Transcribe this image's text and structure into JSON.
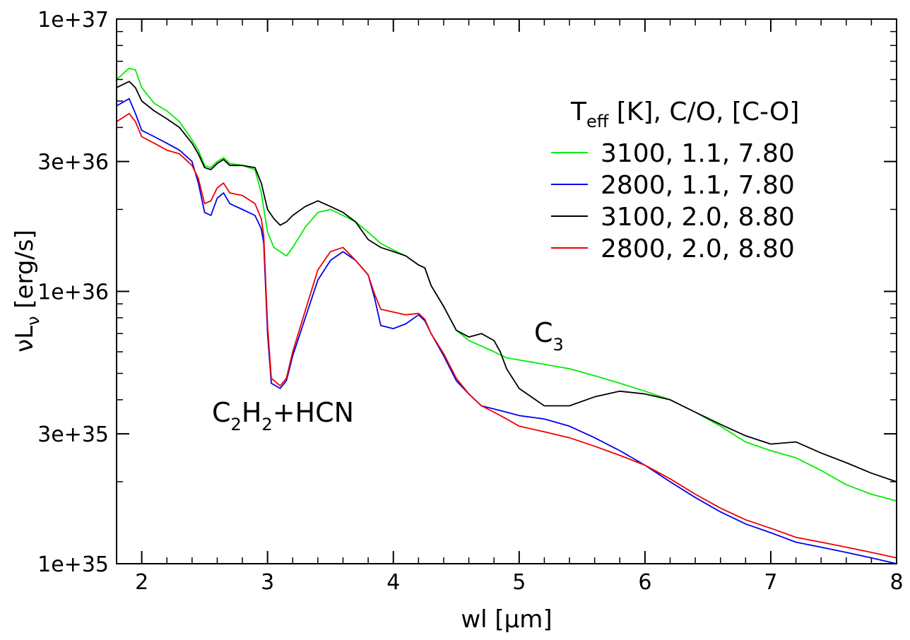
{
  "chart_data": {
    "type": "line",
    "xlabel": "wl [µm]",
    "ylabel": {
      "main": "νL",
      "sub": "ν",
      "unit": " [erg/s]"
    },
    "xlim": [
      1.8,
      8.0
    ],
    "ylim": [
      1e+35,
      1e+37
    ],
    "yscale": "log",
    "x_ticks": [
      2,
      3,
      4,
      5,
      6,
      7,
      8
    ],
    "x_tick_labels": [
      "2",
      "3",
      "4",
      "5",
      "6",
      "7",
      "8"
    ],
    "y_ticks": [
      1e+35,
      3e+35,
      1e+36,
      3e+36,
      1e+37
    ],
    "y_tick_labels": [
      "1e+35",
      "3e+35",
      "1e+36",
      "3e+36",
      "1e+37"
    ],
    "grid": false,
    "legend": {
      "placement": "top-right",
      "title": {
        "main": "T",
        "sub": "eff",
        "rest": " [K], C/O, [C-O]"
      }
    },
    "annotations": [
      {
        "id": "c2h2",
        "parts": [
          "C",
          "2",
          "H",
          "2",
          "+HCN"
        ],
        "x": 3.1,
        "y": 3.8e+35
      },
      {
        "id": "c3",
        "parts": [
          "C",
          "3"
        ],
        "x": 5.4,
        "y": 6.2e+35
      }
    ],
    "series": [
      {
        "name": "3100, 1.1, 7.80",
        "color": "#00ee00",
        "x": [
          1.8,
          1.9,
          1.95,
          2.0,
          2.1,
          2.2,
          2.3,
          2.4,
          2.45,
          2.5,
          2.55,
          2.6,
          2.65,
          2.7,
          2.8,
          2.9,
          2.95,
          3.0,
          3.05,
          3.1,
          3.15,
          3.2,
          3.3,
          3.4,
          3.5,
          3.6,
          3.7,
          3.8,
          3.9,
          4.0,
          4.1,
          4.2,
          4.25,
          4.3,
          4.4,
          4.5,
          4.6,
          4.7,
          4.8,
          4.9,
          5.0,
          5.2,
          5.4,
          5.6,
          5.8,
          6.0,
          6.2,
          6.4,
          6.6,
          6.8,
          7.0,
          7.2,
          7.4,
          7.6,
          7.8,
          8.0
        ],
        "y": [
          6e+36,
          6.6e+36,
          6.5e+36,
          5.6e+36,
          4.9e+36,
          4.6e+36,
          4.2e+36,
          3.6e+36,
          3.3e+36,
          2.9e+36,
          2.85e+36,
          3e+36,
          3.1e+36,
          2.95e+36,
          2.9e+36,
          2.8e+36,
          2.3e+36,
          1.65e+36,
          1.45e+36,
          1.4e+36,
          1.35e+36,
          1.45e+36,
          1.72e+36,
          1.95e+36,
          2e+36,
          1.9e+36,
          1.8e+36,
          1.65e+36,
          1.5e+36,
          1.42e+36,
          1.35e+36,
          1.25e+36,
          1.22e+36,
          1.05e+36,
          8.8e+35,
          7.2e+35,
          6.6e+35,
          6.3e+35,
          6e+35,
          5.7e+35,
          5.6e+35,
          5.4e+35,
          5.2e+35,
          4.9e+35,
          4.6e+35,
          4.3e+35,
          4e+35,
          3.6e+35,
          3.2e+35,
          2.8e+35,
          2.6e+35,
          2.45e+35,
          2.2e+35,
          1.95e+35,
          1.8e+35,
          1.7e+35
        ]
      },
      {
        "name": "2800, 1.1, 7.80",
        "color": "#0000ee",
        "x": [
          1.8,
          1.9,
          1.95,
          2.0,
          2.1,
          2.2,
          2.3,
          2.4,
          2.45,
          2.5,
          2.55,
          2.6,
          2.65,
          2.7,
          2.8,
          2.9,
          2.95,
          2.97,
          3.0,
          3.03,
          3.1,
          3.15,
          3.2,
          3.3,
          3.4,
          3.5,
          3.6,
          3.7,
          3.8,
          3.85,
          3.9,
          4.0,
          4.1,
          4.2,
          4.25,
          4.3,
          4.4,
          4.5,
          4.6,
          4.7,
          4.8,
          4.9,
          5.0,
          5.2,
          5.4,
          5.6,
          5.8,
          6.0,
          6.2,
          6.4,
          6.6,
          6.8,
          7.0,
          7.2,
          7.4,
          7.6,
          7.8,
          8.0
        ],
        "y": [
          4.8e+36,
          5.1e+36,
          4.5e+36,
          3.9e+36,
          3.7e+36,
          3.5e+36,
          3.3e+36,
          3e+36,
          2.5e+36,
          1.95e+36,
          1.9e+36,
          2.2e+36,
          2.3e+36,
          2.1e+36,
          2e+36,
          1.9e+36,
          1.7e+36,
          1.5e+36,
          7e+35,
          4.6e+35,
          4.4e+35,
          4.7e+35,
          5.8e+35,
          8e+35,
          1.1e+36,
          1.3e+36,
          1.4e+36,
          1.3e+36,
          1.15e+36,
          9.5e+35,
          7.5e+35,
          7.3e+35,
          7.6e+35,
          8.2e+35,
          7.8e+35,
          7e+35,
          5.8e+35,
          4.7e+35,
          4.2e+35,
          3.8e+35,
          3.7e+35,
          3.6e+35,
          3.5e+35,
          3.4e+35,
          3.2e+35,
          2.9e+35,
          2.6e+35,
          2.3e+35,
          2e+35,
          1.75e+35,
          1.55e+35,
          1.4e+35,
          1.3e+35,
          1.2e+35,
          1.15e+35,
          1.1e+35,
          1.05e+35,
          1e+35
        ]
      },
      {
        "name": "3100, 2.0, 8.80",
        "color": "#000000",
        "x": [
          1.8,
          1.9,
          1.95,
          2.0,
          2.1,
          2.2,
          2.3,
          2.4,
          2.45,
          2.5,
          2.55,
          2.6,
          2.65,
          2.7,
          2.8,
          2.9,
          2.95,
          3.0,
          3.05,
          3.1,
          3.15,
          3.2,
          3.3,
          3.4,
          3.5,
          3.6,
          3.7,
          3.8,
          3.9,
          4.0,
          4.1,
          4.2,
          4.25,
          4.3,
          4.4,
          4.5,
          4.6,
          4.7,
          4.8,
          4.85,
          4.9,
          5.0,
          5.2,
          5.4,
          5.6,
          5.8,
          6.0,
          6.2,
          6.4,
          6.6,
          6.8,
          7.0,
          7.2,
          7.4,
          7.6,
          7.8,
          8.0
        ],
        "y": [
          5.6e+36,
          5.9e+36,
          5.6e+36,
          5e+36,
          4.6e+36,
          4.3e+36,
          4e+36,
          3.5e+36,
          3.2e+36,
          2.85e+36,
          2.8e+36,
          2.95e+36,
          3.05e+36,
          2.9e+36,
          2.9e+36,
          2.85e+36,
          2.5e+36,
          2e+36,
          1.85e+36,
          1.75e+36,
          1.8e+36,
          1.9e+36,
          2.05e+36,
          2.15e+36,
          2.05e+36,
          1.95e+36,
          1.8e+36,
          1.55e+36,
          1.45e+36,
          1.4e+36,
          1.35e+36,
          1.25e+36,
          1.22e+36,
          1.05e+36,
          8.8e+35,
          7.2e+35,
          6.8e+35,
          7e+35,
          6.6e+35,
          6e+35,
          5.2e+35,
          4.4e+35,
          3.8e+35,
          3.8e+35,
          4.1e+35,
          4.3e+35,
          4.2e+35,
          4e+35,
          3.6e+35,
          3.25e+35,
          2.95e+35,
          2.75e+35,
          2.8e+35,
          2.55e+35,
          2.35e+35,
          2.15e+35,
          2e+35
        ]
      },
      {
        "name": "2800, 2.0, 8.80",
        "color": "#ee0000",
        "x": [
          1.8,
          1.9,
          1.95,
          2.0,
          2.1,
          2.2,
          2.3,
          2.4,
          2.45,
          2.5,
          2.55,
          2.6,
          2.65,
          2.7,
          2.8,
          2.9,
          2.95,
          2.97,
          3.0,
          3.03,
          3.1,
          3.15,
          3.2,
          3.3,
          3.4,
          3.5,
          3.6,
          3.7,
          3.8,
          3.85,
          3.9,
          4.0,
          4.1,
          4.2,
          4.25,
          4.3,
          4.4,
          4.5,
          4.6,
          4.7,
          4.8,
          4.9,
          5.0,
          5.2,
          5.4,
          5.6,
          5.8,
          6.0,
          6.2,
          6.4,
          6.6,
          6.8,
          7.0,
          7.2,
          7.4,
          7.6,
          7.8,
          8.0
        ],
        "y": [
          4.2e+36,
          4.5e+36,
          4.2e+36,
          3.7e+36,
          3.5e+36,
          3.3e+36,
          3.2e+36,
          2.9e+36,
          2.6e+36,
          2.1e+36,
          2.15e+36,
          2.4e+36,
          2.5e+36,
          2.3e+36,
          2.25e+36,
          2.1e+36,
          1.85e+36,
          1.6e+36,
          7.5e+35,
          4.8e+35,
          4.5e+35,
          4.8e+35,
          6e+35,
          8.5e+35,
          1.2e+36,
          1.4e+36,
          1.45e+36,
          1.3e+36,
          1.15e+36,
          9.8e+35,
          8.6e+35,
          8.4e+35,
          8.2e+35,
          8.3e+35,
          7.9e+35,
          7e+35,
          5.9e+35,
          4.8e+35,
          4.2e+35,
          3.8e+35,
          3.6e+35,
          3.4e+35,
          3.2e+35,
          3.05e+35,
          2.9e+35,
          2.7e+35,
          2.5e+35,
          2.3e+35,
          2.05e+35,
          1.8e+35,
          1.6e+35,
          1.45e+35,
          1.35e+35,
          1.25e+35,
          1.2e+35,
          1.15e+35,
          1.1e+35,
          1.05e+35
        ]
      }
    ]
  }
}
